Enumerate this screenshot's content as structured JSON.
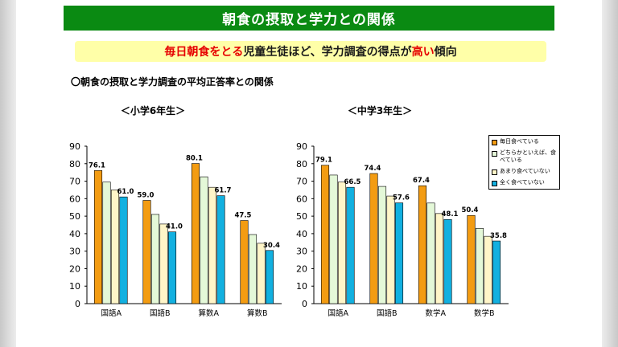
{
  "page": {
    "title": "朝食の摂取と学力との関係",
    "headline": {
      "part1": "毎日朝食をとる",
      "part2": "児童生徒ほど、学力調査の得点が",
      "part3": "高い",
      "part4": "傾向"
    },
    "section_label": "〇朝食の摂取と学力調査の平均正答率との関係"
  },
  "colors": {
    "title_bg": "#0a8a12",
    "headline_bg": "#ffffa8",
    "highlight": "#e60000",
    "series": [
      "#f39c12",
      "#e4f8d8",
      "#fff5c8",
      "#12b0e0"
    ]
  },
  "legend": [
    "毎日食べている",
    "どちらかといえば、食べている",
    "あまり食べていない",
    "全く食べていない"
  ],
  "chart_data": [
    {
      "type": "bar",
      "title": "＜小学6年生＞",
      "categories": [
        "国語A",
        "国語B",
        "算数A",
        "算数B"
      ],
      "ylim": [
        0,
        90
      ],
      "yticks": [
        0,
        10,
        20,
        30,
        40,
        50,
        60,
        70,
        80,
        90
      ],
      "series": [
        {
          "name": "毎日食べている",
          "values": [
            76.1,
            59.0,
            80.1,
            47.5
          ]
        },
        {
          "name": "どちらかといえば、食べている",
          "values": [
            69.5,
            51.0,
            72.5,
            39.5
          ]
        },
        {
          "name": "あまり食べていない",
          "values": [
            65.0,
            45.5,
            66.5,
            34.5
          ]
        },
        {
          "name": "全く食べていない",
          "values": [
            61.0,
            41.0,
            61.7,
            30.4
          ]
        }
      ],
      "data_labels": {
        "0": [
          "76.1",
          "59.0",
          "80.1",
          "47.5"
        ],
        "3": [
          "61.0",
          "41.0",
          "61.7",
          "30.4"
        ]
      }
    },
    {
      "type": "bar",
      "title": "＜中学3年生＞",
      "categories": [
        "国語A",
        "国語B",
        "数学A",
        "数学B"
      ],
      "ylim": [
        0,
        90
      ],
      "yticks": [
        0,
        10,
        20,
        30,
        40,
        50,
        60,
        70,
        80,
        90
      ],
      "series": [
        {
          "name": "毎日食べている",
          "values": [
            79.1,
            74.4,
            67.4,
            50.4
          ]
        },
        {
          "name": "どちらかといえば、食べている",
          "values": [
            73.5,
            67.0,
            57.5,
            43.0
          ]
        },
        {
          "name": "あまり食べていない",
          "values": [
            69.5,
            61.5,
            51.5,
            38.5
          ]
        },
        {
          "name": "全く食べていない",
          "values": [
            66.5,
            57.6,
            48.1,
            35.8
          ]
        }
      ],
      "data_labels": {
        "0": [
          "79.1",
          "74.4",
          "67.4",
          "50.4"
        ],
        "3": [
          "66.5",
          "57.6",
          "48.1",
          "35.8"
        ]
      }
    }
  ]
}
